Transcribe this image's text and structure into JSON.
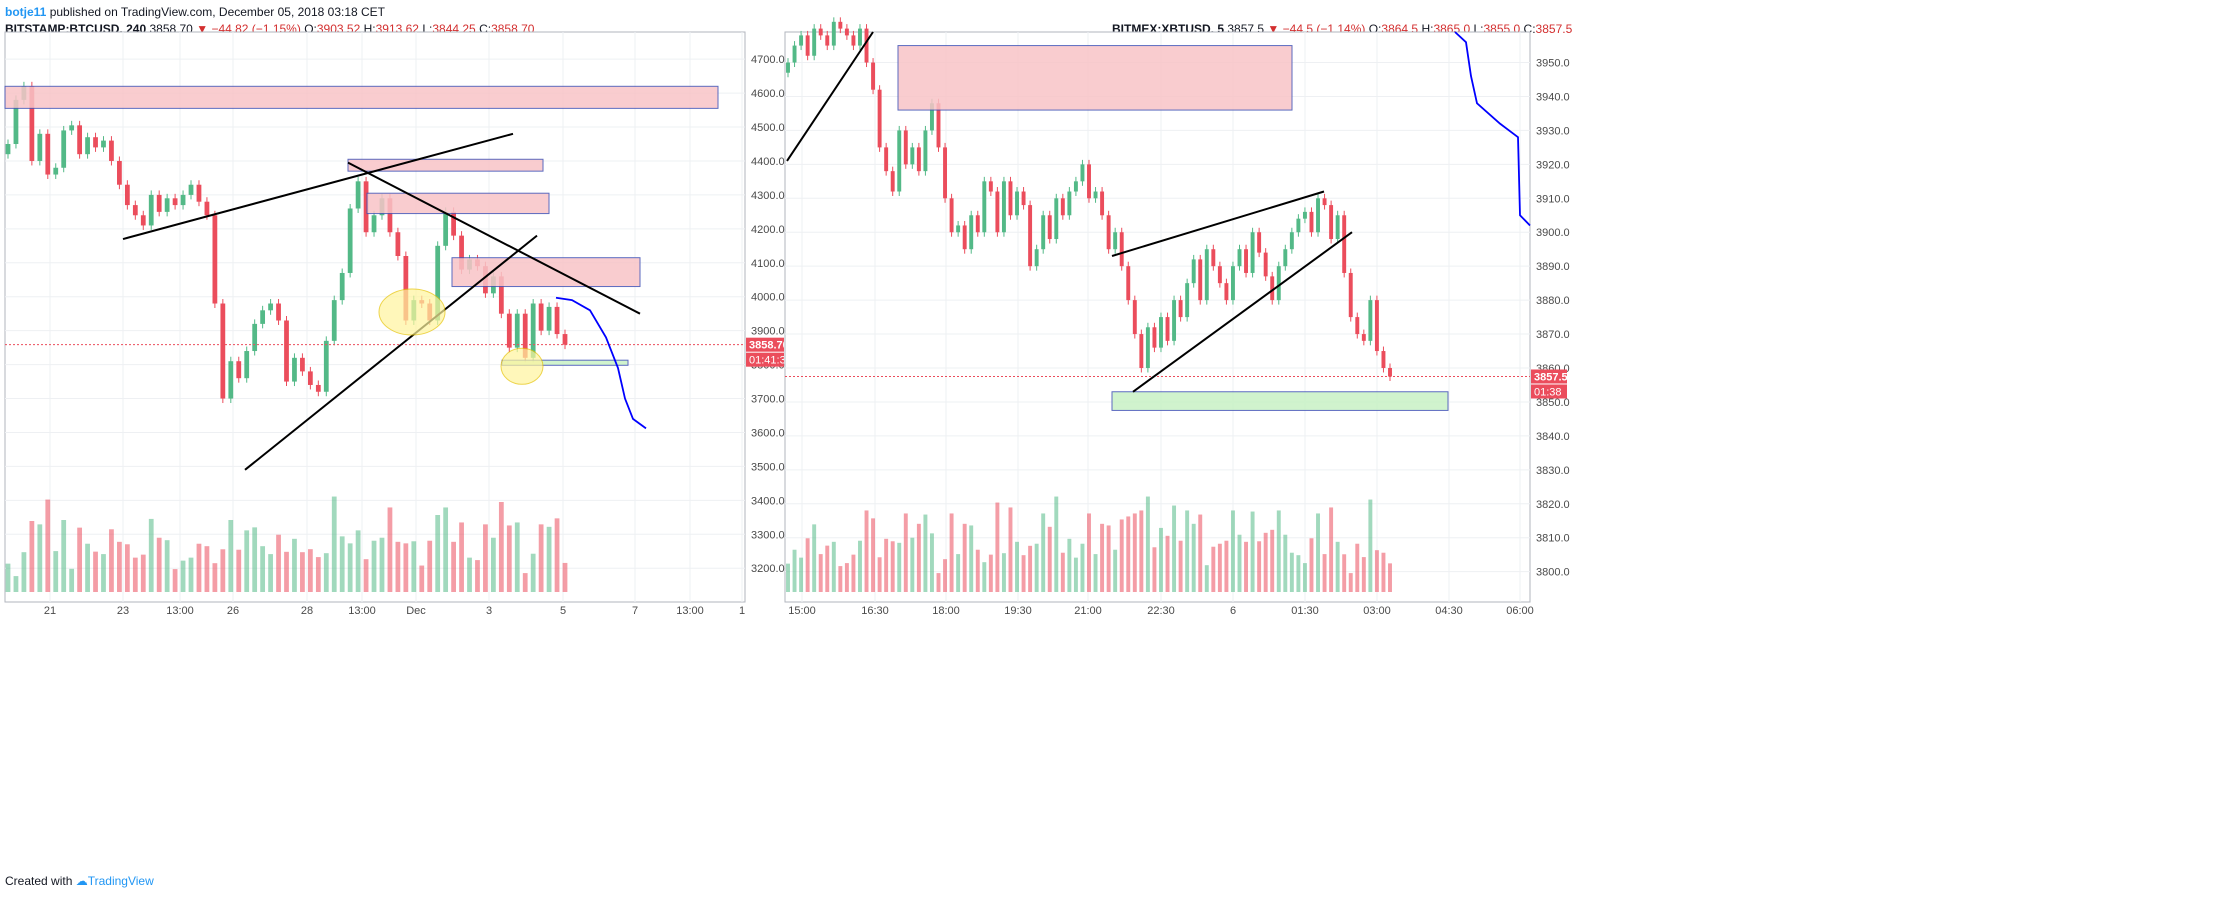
{
  "header": {
    "user": "botje11",
    "text": " published on TradingView.com, December 05, 2018 03:18 CET"
  },
  "footer": {
    "created_with": "Created with",
    "brand": "TradingView"
  },
  "colors": {
    "up": "#53b987",
    "down": "#eb4d5c",
    "zone_red": "#f8c4c7",
    "zone_green": "#c8f2c5",
    "zone_border": "#3f51b5",
    "forecast": "#0000ff"
  },
  "charts": [
    {
      "legend": {
        "symbol": "BITSTAMP:BTCUSD, 240",
        "last": "3858.70",
        "change": "−44.82 (−1.15%)",
        "o_label": "O:",
        "o": "3903.52",
        "h_label": "H:",
        "h": "3913.62",
        "l_label": "L:",
        "l": "3844.25",
        "c_label": "C:",
        "c": "3858.70"
      },
      "price_label": "3858.70",
      "countdown": "01:41:38"
    },
    {
      "legend": {
        "symbol": "BITMEX:XBTUSD, 5",
        "last": "3857.5",
        "change": "−44.5 (−1.14%)",
        "o_label": "O:",
        "o": "3864.5",
        "h_label": "H:",
        "h": "3865.0",
        "l_label": "L:",
        "l": "3855.0",
        "c_label": "C:",
        "c": "3857.5"
      },
      "price_label": "3857.5",
      "countdown": "01:38"
    }
  ],
  "chart_data": [
    {
      "type": "candlestick",
      "symbol": "BITSTAMP:BTCUSD",
      "interval": "240",
      "ylim": [
        3130,
        4780
      ],
      "y_ticks": [
        "4700.00",
        "4600.00",
        "4500.00",
        "4400.00",
        "4300.00",
        "4200.00",
        "4100.00",
        "4000.00",
        "3900.00",
        "3800.00",
        "3700.00",
        "3600.00",
        "3500.00",
        "3400.00",
        "3300.00",
        "3200.00"
      ],
      "x_ticks": [
        "21",
        "23",
        "13:00",
        "26",
        "28",
        "13:00",
        "Dec",
        "3",
        "5",
        "7",
        "13:00",
        "1"
      ],
      "last_price": 3858.7,
      "closes": [
        4450,
        4580,
        4620,
        4400,
        4480,
        4360,
        4380,
        4490,
        4505,
        4420,
        4470,
        4440,
        4460,
        4400,
        4330,
        4270,
        4240,
        4210,
        4300,
        4250,
        4290,
        4270,
        4300,
        4330,
        4280,
        4240,
        3980,
        3700,
        3810,
        3760,
        3840,
        3920,
        3960,
        3980,
        3930,
        3750,
        3820,
        3780,
        3740,
        3720,
        3870,
        3990,
        4070,
        4260,
        4340,
        4190,
        4240,
        4290,
        4190,
        4120,
        3930,
        3990,
        3980,
        3930,
        4150,
        4250,
        4180,
        4080,
        4110,
        4090,
        4010,
        4060,
        3950,
        3850,
        3950,
        3820,
        3980,
        3900,
        3970,
        3890,
        3858.7
      ]
    },
    {
      "type": "candlestick",
      "symbol": "BITMEX:XBTUSD",
      "interval": "5",
      "ylim": [
        3794,
        3959
      ],
      "y_ticks": [
        "3950.0",
        "3940.0",
        "3930.0",
        "3920.0",
        "3910.0",
        "3900.0",
        "3890.0",
        "3880.0",
        "3870.0",
        "3860.0",
        "3850.0",
        "3840.0",
        "3830.0",
        "3820.0",
        "3810.0",
        "3800.0"
      ],
      "x_ticks": [
        "15:00",
        "16:30",
        "18:00",
        "19:30",
        "21:00",
        "22:30",
        "6",
        "01:30",
        "03:00",
        "04:30",
        "06:00"
      ],
      "last_price": 3857.5,
      "closes": [
        3950,
        3955,
        3958,
        3952,
        3960,
        3958,
        3955,
        3962,
        3960,
        3958,
        3955,
        3960,
        3950,
        3942,
        3925,
        3918,
        3912,
        3930,
        3920,
        3925,
        3918,
        3930,
        3938,
        3925,
        3910,
        3900,
        3902,
        3895,
        3905,
        3900,
        3915,
        3912,
        3900,
        3915,
        3905,
        3912,
        3908,
        3890,
        3895,
        3905,
        3898,
        3910,
        3905,
        3912,
        3915,
        3920,
        3910,
        3912,
        3905,
        3895,
        3900,
        3890,
        3880,
        3870,
        3860,
        3872,
        3866,
        3875,
        3868,
        3880,
        3875,
        3885,
        3892,
        3880,
        3895,
        3890,
        3885,
        3880,
        3890,
        3895,
        3888,
        3900,
        3894,
        3887,
        3880,
        3890,
        3895,
        3900,
        3904,
        3906,
        3900,
        3910,
        3908,
        3898,
        3905,
        3888,
        3875,
        3870,
        3868,
        3880,
        3865,
        3860,
        3857.5
      ]
    }
  ]
}
